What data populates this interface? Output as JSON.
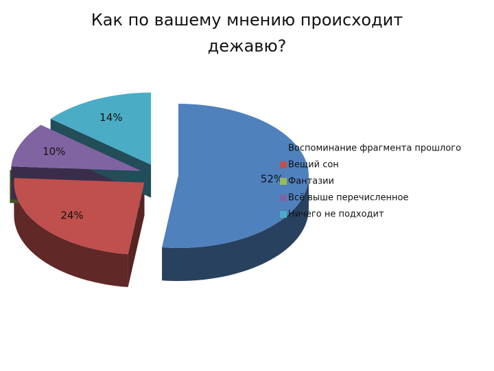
{
  "chart_data": {
    "type": "pie3d",
    "title": "Как по вашему мнению происходит дежавю?",
    "categories": [
      "Воспоминание фрагмента прошлого",
      "Вещий сон",
      "Фантазии",
      "Всё выше перечисленное",
      "Ничего не подходит"
    ],
    "values": [
      52,
      24,
      0,
      10,
      14
    ],
    "value_labels": [
      "52%",
      "24%",
      null,
      "10%",
      "14%"
    ],
    "colors": [
      "#4f81bd",
      "#c0504d",
      "#9bbb59",
      "#8064a2",
      "#4bacc6"
    ],
    "legend": "right"
  }
}
